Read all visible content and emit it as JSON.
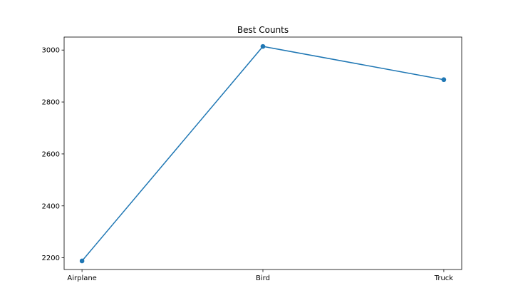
{
  "chart_data": {
    "type": "line",
    "title": "Best Counts",
    "xlabel": "",
    "ylabel": "",
    "categories": [
      "Airplane",
      "Bird",
      "Truck"
    ],
    "series": [
      {
        "values": [
          2188,
          3014,
          2886
        ],
        "color": "#1f77b4",
        "marker": "circle"
      }
    ],
    "ylim": [
      2155,
      3050
    ],
    "yticks": [
      2200,
      2400,
      2600,
      2800,
      3000
    ],
    "grid": false,
    "legend": "none"
  }
}
